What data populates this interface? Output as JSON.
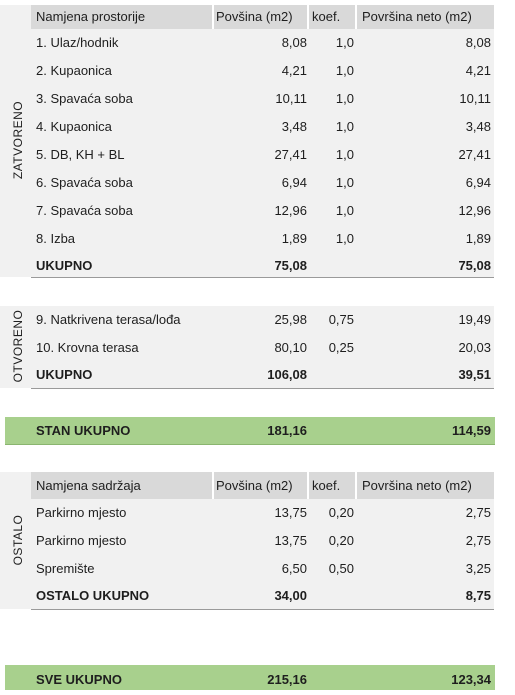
{
  "zatvoreno": {
    "side_label": "ZATVORENO",
    "headers": {
      "name": "Namjena prostorije",
      "area": "Povšina (m2)",
      "koef": "koef.",
      "neto": "Površina neto (m2)"
    },
    "rows": [
      {
        "name": "1. Ulaz/hodnik",
        "area": "8,08",
        "koef": "1,0",
        "neto": "8,08"
      },
      {
        "name": "2. Kupaonica",
        "area": "4,21",
        "koef": "1,0",
        "neto": "4,21"
      },
      {
        "name": "3. Spavaća soba",
        "area": "10,11",
        "koef": "1,0",
        "neto": "10,11"
      },
      {
        "name": "4. Kupaonica",
        "area": "3,48",
        "koef": "1,0",
        "neto": "3,48"
      },
      {
        "name": "5. DB, KH + BL",
        "area": "27,41",
        "koef": "1,0",
        "neto": "27,41"
      },
      {
        "name": "6. Spavaća soba",
        "area": "6,94",
        "koef": "1,0",
        "neto": "6,94"
      },
      {
        "name": "7. Spavaća soba",
        "area": "12,96",
        "koef": "1,0",
        "neto": "12,96"
      },
      {
        "name": "8. Izba",
        "area": "1,89",
        "koef": "1,0",
        "neto": "1,89"
      }
    ],
    "total": {
      "name": "UKUPNO",
      "area": "75,08",
      "neto": "75,08"
    }
  },
  "otvoreno": {
    "side_label": "OTVORENO",
    "rows": [
      {
        "name": "9. Natkrivena terasa/lođa",
        "area": "25,98",
        "koef": "0,75",
        "neto": "19,49"
      },
      {
        "name": "10. Krovna terasa",
        "area": "80,10",
        "koef": "0,25",
        "neto": "20,03"
      }
    ],
    "total": {
      "name": "UKUPNO",
      "area": "106,08",
      "neto": "39,51"
    }
  },
  "stan_ukupno": {
    "name": "STAN UKUPNO",
    "area": "181,16",
    "neto": "114,59"
  },
  "ostalo": {
    "side_label": "OSTALO",
    "headers": {
      "name": "Namjena sadržaja",
      "area": "Povšina (m2)",
      "koef": "koef.",
      "neto": "Površina neto (m2)"
    },
    "rows": [
      {
        "name": "Parkirno mjesto",
        "area": "13,75",
        "koef": "0,20",
        "neto": "2,75"
      },
      {
        "name": "Parkirno mjesto",
        "area": "13,75",
        "koef": "0,20",
        "neto": "2,75"
      },
      {
        "name": "Spremište",
        "area": "6,50",
        "koef": "0,50",
        "neto": "3,25"
      }
    ],
    "total": {
      "name": "OSTALO UKUPNO",
      "area": "34,00",
      "neto": "8,75"
    }
  },
  "sve_ukupno": {
    "name": "SVE UKUPNO",
    "area": "215,16",
    "neto": "123,34"
  },
  "colors": {
    "green": "#a8d08d",
    "header_gray": "#d9d9d9",
    "row_gray": "#f1f1f1"
  }
}
